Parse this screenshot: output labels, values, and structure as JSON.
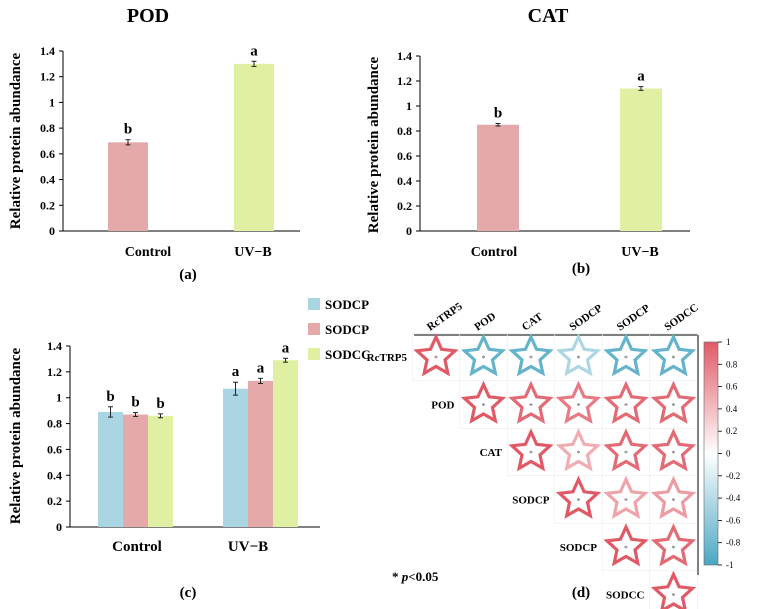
{
  "colors": {
    "control_bar": "#e6a9aa",
    "uvb_bar": "#dff0a3",
    "sodcp1": "#a9d6e2",
    "sodcp2": "#e6a9aa",
    "sodcc": "#dff0a3",
    "corr_positive": "#e05a66",
    "corr_negative": "#4aa7c3",
    "corr_zero": "#ffffff"
  },
  "chart_data": [
    {
      "id": "a",
      "type": "bar",
      "title": "POD",
      "panel_label": "(a)",
      "ylabel": "Relative protein abundance",
      "xlabel": "",
      "categories": [
        "Control",
        "UV−B"
      ],
      "values": [
        0.69,
        1.3
      ],
      "errors": [
        0.02,
        0.02
      ],
      "sig_labels": [
        "b",
        "a"
      ],
      "ylim": [
        0,
        1.4
      ],
      "yticks": [
        "0",
        "0.2",
        "0.4",
        "0.6",
        "0.8",
        "1",
        "1.2",
        "1.4"
      ],
      "grid": false
    },
    {
      "id": "b",
      "type": "bar",
      "title": "CAT",
      "panel_label": "(b)",
      "ylabel": "Relative protein abundance",
      "xlabel": "",
      "categories": [
        "Control",
        "UV−B"
      ],
      "values": [
        0.85,
        1.14
      ],
      "errors": [
        0.01,
        0.015
      ],
      "sig_labels": [
        "b",
        "a"
      ],
      "ylim": [
        0,
        1.4
      ],
      "yticks": [
        "0",
        "0.2",
        "0.4",
        "0.6",
        "0.8",
        "1",
        "1.2",
        "1.4"
      ],
      "grid": false
    },
    {
      "id": "c",
      "type": "bar",
      "title": "",
      "panel_label": "(c)",
      "ylabel": "Relative protein abundance",
      "xlabel": "",
      "categories": [
        "Control",
        "UV−B"
      ],
      "series": [
        {
          "name": "SODCP",
          "values": [
            0.89,
            1.07
          ],
          "errors": [
            0.04,
            0.05
          ],
          "sig_labels": [
            "b",
            "a"
          ]
        },
        {
          "name": "SODCP",
          "values": [
            0.87,
            1.13
          ],
          "errors": [
            0.015,
            0.02
          ],
          "sig_labels": [
            "b",
            "a"
          ]
        },
        {
          "name": "SODCC",
          "values": [
            0.86,
            1.29
          ],
          "errors": [
            0.015,
            0.015
          ],
          "sig_labels": [
            "b",
            "a"
          ]
        }
      ],
      "ylim": [
        0,
        1.4
      ],
      "yticks": [
        "0",
        "0.2",
        "0.4",
        "0.6",
        "0.8",
        "1",
        "1.2",
        "1.4"
      ],
      "legend": "top-right",
      "grid": false
    },
    {
      "id": "d",
      "type": "heatmap",
      "panel_label": "(d)",
      "variables": [
        "RcTRP5",
        "POD",
        "CAT",
        "SODCP",
        "SODCP",
        "SODCC"
      ],
      "matrix": [
        [
          1.0,
          -0.85,
          -0.85,
          -0.45,
          -0.85,
          -0.85
        ],
        [
          -0.85,
          1.0,
          0.9,
          0.8,
          0.9,
          0.9
        ],
        [
          -0.85,
          0.9,
          1.0,
          0.5,
          0.9,
          0.9
        ],
        [
          -0.45,
          0.8,
          0.5,
          1.0,
          0.55,
          0.6
        ],
        [
          -0.85,
          0.9,
          0.9,
          0.55,
          1.0,
          0.9
        ],
        [
          -0.85,
          0.9,
          0.9,
          0.6,
          0.9,
          1.0
        ]
      ],
      "significance_mark": "*",
      "shape": "star",
      "colorbar_ticks": [
        "1",
        "0.8",
        "0.6",
        "0.4",
        "0.2",
        "0",
        "-0.2",
        "-0.4",
        "-0.6",
        "-0.8",
        "-1"
      ],
      "colorbar_range": [
        -1,
        1
      ],
      "footnote_star": "*",
      "footnote_p": "p",
      "footnote_rest": "<0.05"
    }
  ]
}
